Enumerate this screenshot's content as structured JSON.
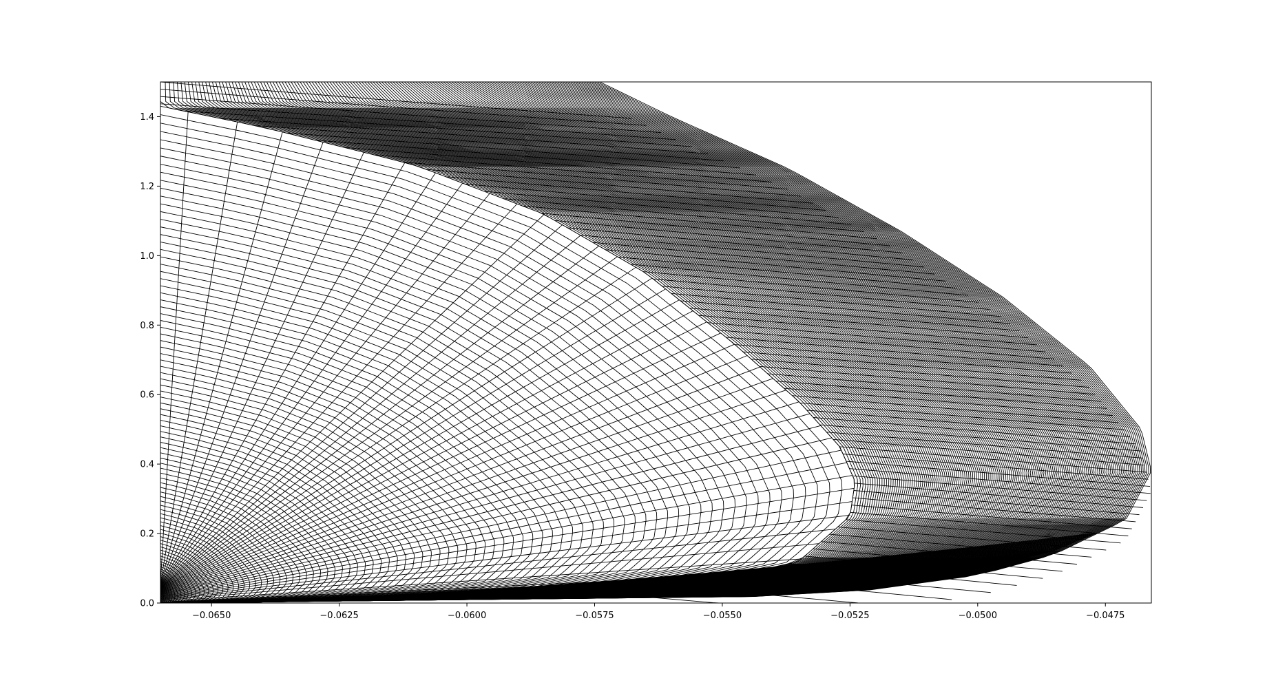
{
  "chart_data": {
    "type": "line",
    "title": "",
    "xlabel": "",
    "ylabel": "",
    "xlim": [
      -0.066,
      -0.0466
    ],
    "ylim": [
      0.0,
      1.5
    ],
    "grid": false,
    "line_color": "#000000",
    "x_ticks": [
      -0.065,
      -0.0625,
      -0.06,
      -0.0575,
      -0.055,
      -0.0525,
      -0.05,
      -0.0475
    ],
    "x_tick_labels": [
      "−0.0650",
      "−0.0625",
      "−0.0600",
      "−0.0575",
      "−0.0550",
      "−0.0525",
      "−0.0500",
      "−0.0475"
    ],
    "y_ticks": [
      0.0,
      0.2,
      0.4,
      0.6,
      0.8,
      1.0,
      1.2,
      1.4
    ],
    "y_tick_labels": [
      "0.0",
      "0.2",
      "0.4",
      "0.6",
      "0.8",
      "1.0",
      "1.2",
      "1.4"
    ],
    "mesh": {
      "description_free_params": true,
      "inner_boundary": [
        {
          "x": -0.066,
          "y": 0.0
        },
        {
          "x": -0.06,
          "y": 0.01
        },
        {
          "x": -0.0575,
          "y": 0.03
        },
        {
          "x": -0.055,
          "y": 0.07
        },
        {
          "x": -0.0535,
          "y": 0.12
        },
        {
          "x": -0.0525,
          "y": 0.25
        },
        {
          "x": -0.0524,
          "y": 0.35
        },
        {
          "x": -0.0527,
          "y": 0.45
        },
        {
          "x": -0.0535,
          "y": 0.58
        },
        {
          "x": -0.0548,
          "y": 0.75
        },
        {
          "x": -0.0565,
          "y": 0.95
        },
        {
          "x": -0.0585,
          "y": 1.12
        },
        {
          "x": -0.061,
          "y": 1.26
        },
        {
          "x": -0.064,
          "y": 1.37
        },
        {
          "x": -0.066,
          "y": 1.43
        }
      ],
      "outer_boundary": [
        {
          "x": -0.066,
          "y": 0.0
        },
        {
          "x": -0.0575,
          "y": 0.0
        },
        {
          "x": -0.0525,
          "y": 0.03
        },
        {
          "x": -0.05,
          "y": 0.08
        },
        {
          "x": -0.0485,
          "y": 0.14
        },
        {
          "x": -0.0471,
          "y": 0.24
        },
        {
          "x": -0.0466,
          "y": 0.38
        },
        {
          "x": -0.0468,
          "y": 0.5
        },
        {
          "x": -0.0478,
          "y": 0.68
        },
        {
          "x": -0.0495,
          "y": 0.88
        },
        {
          "x": -0.0515,
          "y": 1.07
        },
        {
          "x": -0.0537,
          "y": 1.25
        },
        {
          "x": -0.056,
          "y": 1.4
        },
        {
          "x": -0.0574,
          "y": 1.5
        }
      ],
      "top_edge_y": 1.5,
      "left_edge_x": -0.066,
      "n_spokes": 44,
      "n_parabolas": 150
    }
  }
}
